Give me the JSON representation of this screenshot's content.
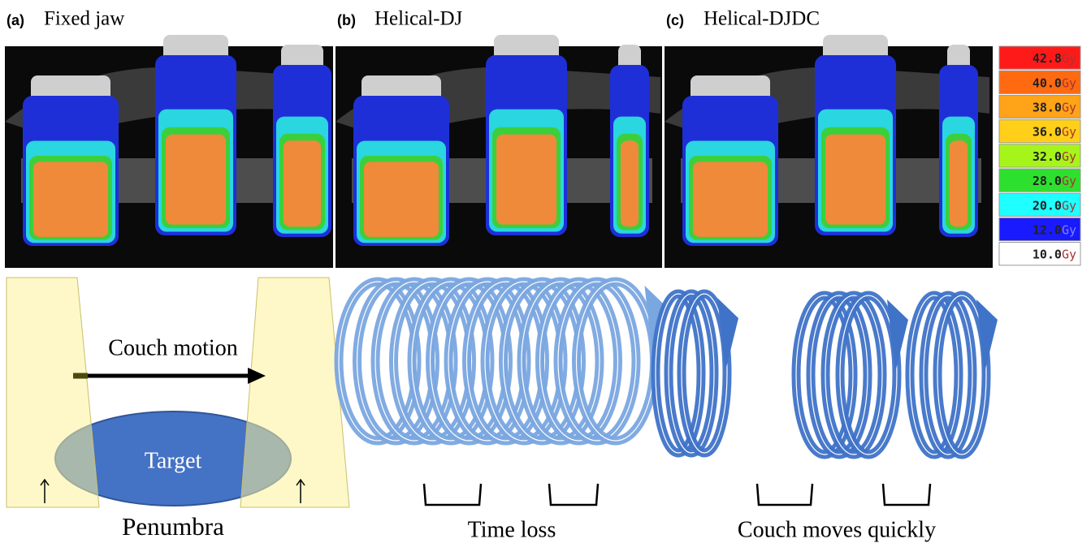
{
  "panels": [
    {
      "tag": "(a)",
      "title": "Fixed jaw"
    },
    {
      "tag": "(b)",
      "title": "Helical-DJ"
    },
    {
      "tag": "(c)",
      "title": "Helical-DJDC"
    }
  ],
  "dose_legend": [
    {
      "value": "42.8",
      "unit": "Gy",
      "color": "#ff1a1a"
    },
    {
      "value": "40.0",
      "unit": "Gy",
      "color": "#ff6a10"
    },
    {
      "value": "38.0",
      "unit": "Gy",
      "color": "#ffa319"
    },
    {
      "value": "36.0",
      "unit": "Gy",
      "color": "#ffcf1a"
    },
    {
      "value": "32.0",
      "unit": "Gy",
      "color": "#a6f51a"
    },
    {
      "value": "28.0",
      "unit": "Gy",
      "color": "#2ee02e"
    },
    {
      "value": "20.0",
      "unit": "Gy",
      "color": "#1fffff"
    },
    {
      "value": "12.0",
      "unit": "Gy",
      "color": "#1a1aff"
    },
    {
      "value": "10.0",
      "unit": "Gy",
      "color": "#ffffff"
    }
  ],
  "diagram": {
    "couch_motion": "Couch motion",
    "target": "Target",
    "penumbra": "Penumbra",
    "time_loss": "Time loss",
    "couch_moves_quickly": "Couch moves quickly"
  }
}
